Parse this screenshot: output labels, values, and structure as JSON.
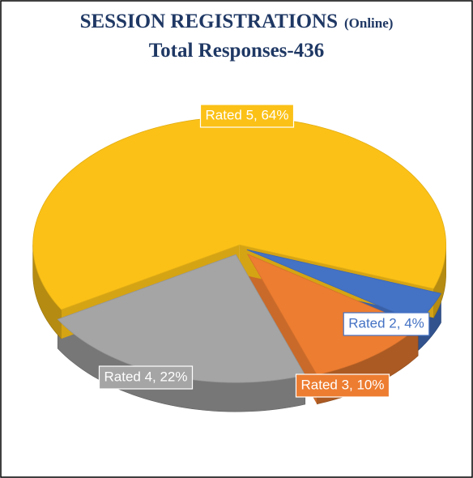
{
  "chart_data": {
    "type": "pie3d",
    "title": "SESSION REGISTRATIONS",
    "title_note": "(Online)",
    "subtitle": "Total Responses-436",
    "values": [
      4,
      10,
      22,
      64
    ],
    "value_labels": [
      "Rated 2, 4%",
      "Rated 3, 10%",
      "Rated 4, 22%",
      "Rated 5, 64%"
    ],
    "colors": [
      "#4472c4",
      "#ed7d31",
      "#a5a5a5",
      "#fbc117"
    ]
  }
}
